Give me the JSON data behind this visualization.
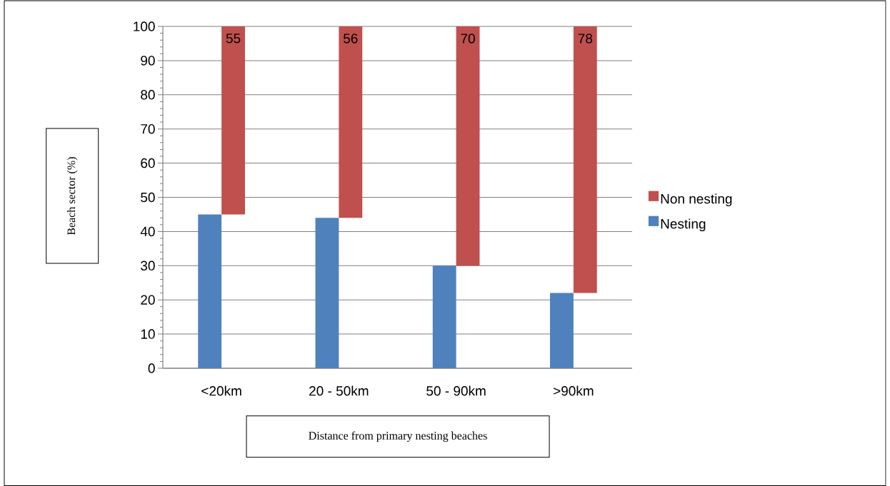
{
  "chart_data": {
    "type": "bar",
    "xlabel": "Distance from primary nesting beaches",
    "ylabel": "Beach sector (%)",
    "categories": [
      "<20km",
      "20 - 50km",
      "50 - 90km",
      ">90km"
    ],
    "series": [
      {
        "name": "Nesting",
        "color": "#4f81bd",
        "values": [
          45,
          44,
          30,
          22
        ]
      },
      {
        "name": "Non nesting",
        "color": "#c0504d",
        "values": [
          55,
          56,
          70,
          78
        ],
        "base": [
          45,
          44,
          30,
          22
        ],
        "value_labels": [
          "55",
          "56",
          "70",
          "78"
        ]
      }
    ],
    "ylim": [
      0,
      100
    ],
    "yticks": [
      0,
      10,
      20,
      30,
      40,
      50,
      60,
      70,
      80,
      90,
      100
    ],
    "grid": "y",
    "legend": "right"
  }
}
